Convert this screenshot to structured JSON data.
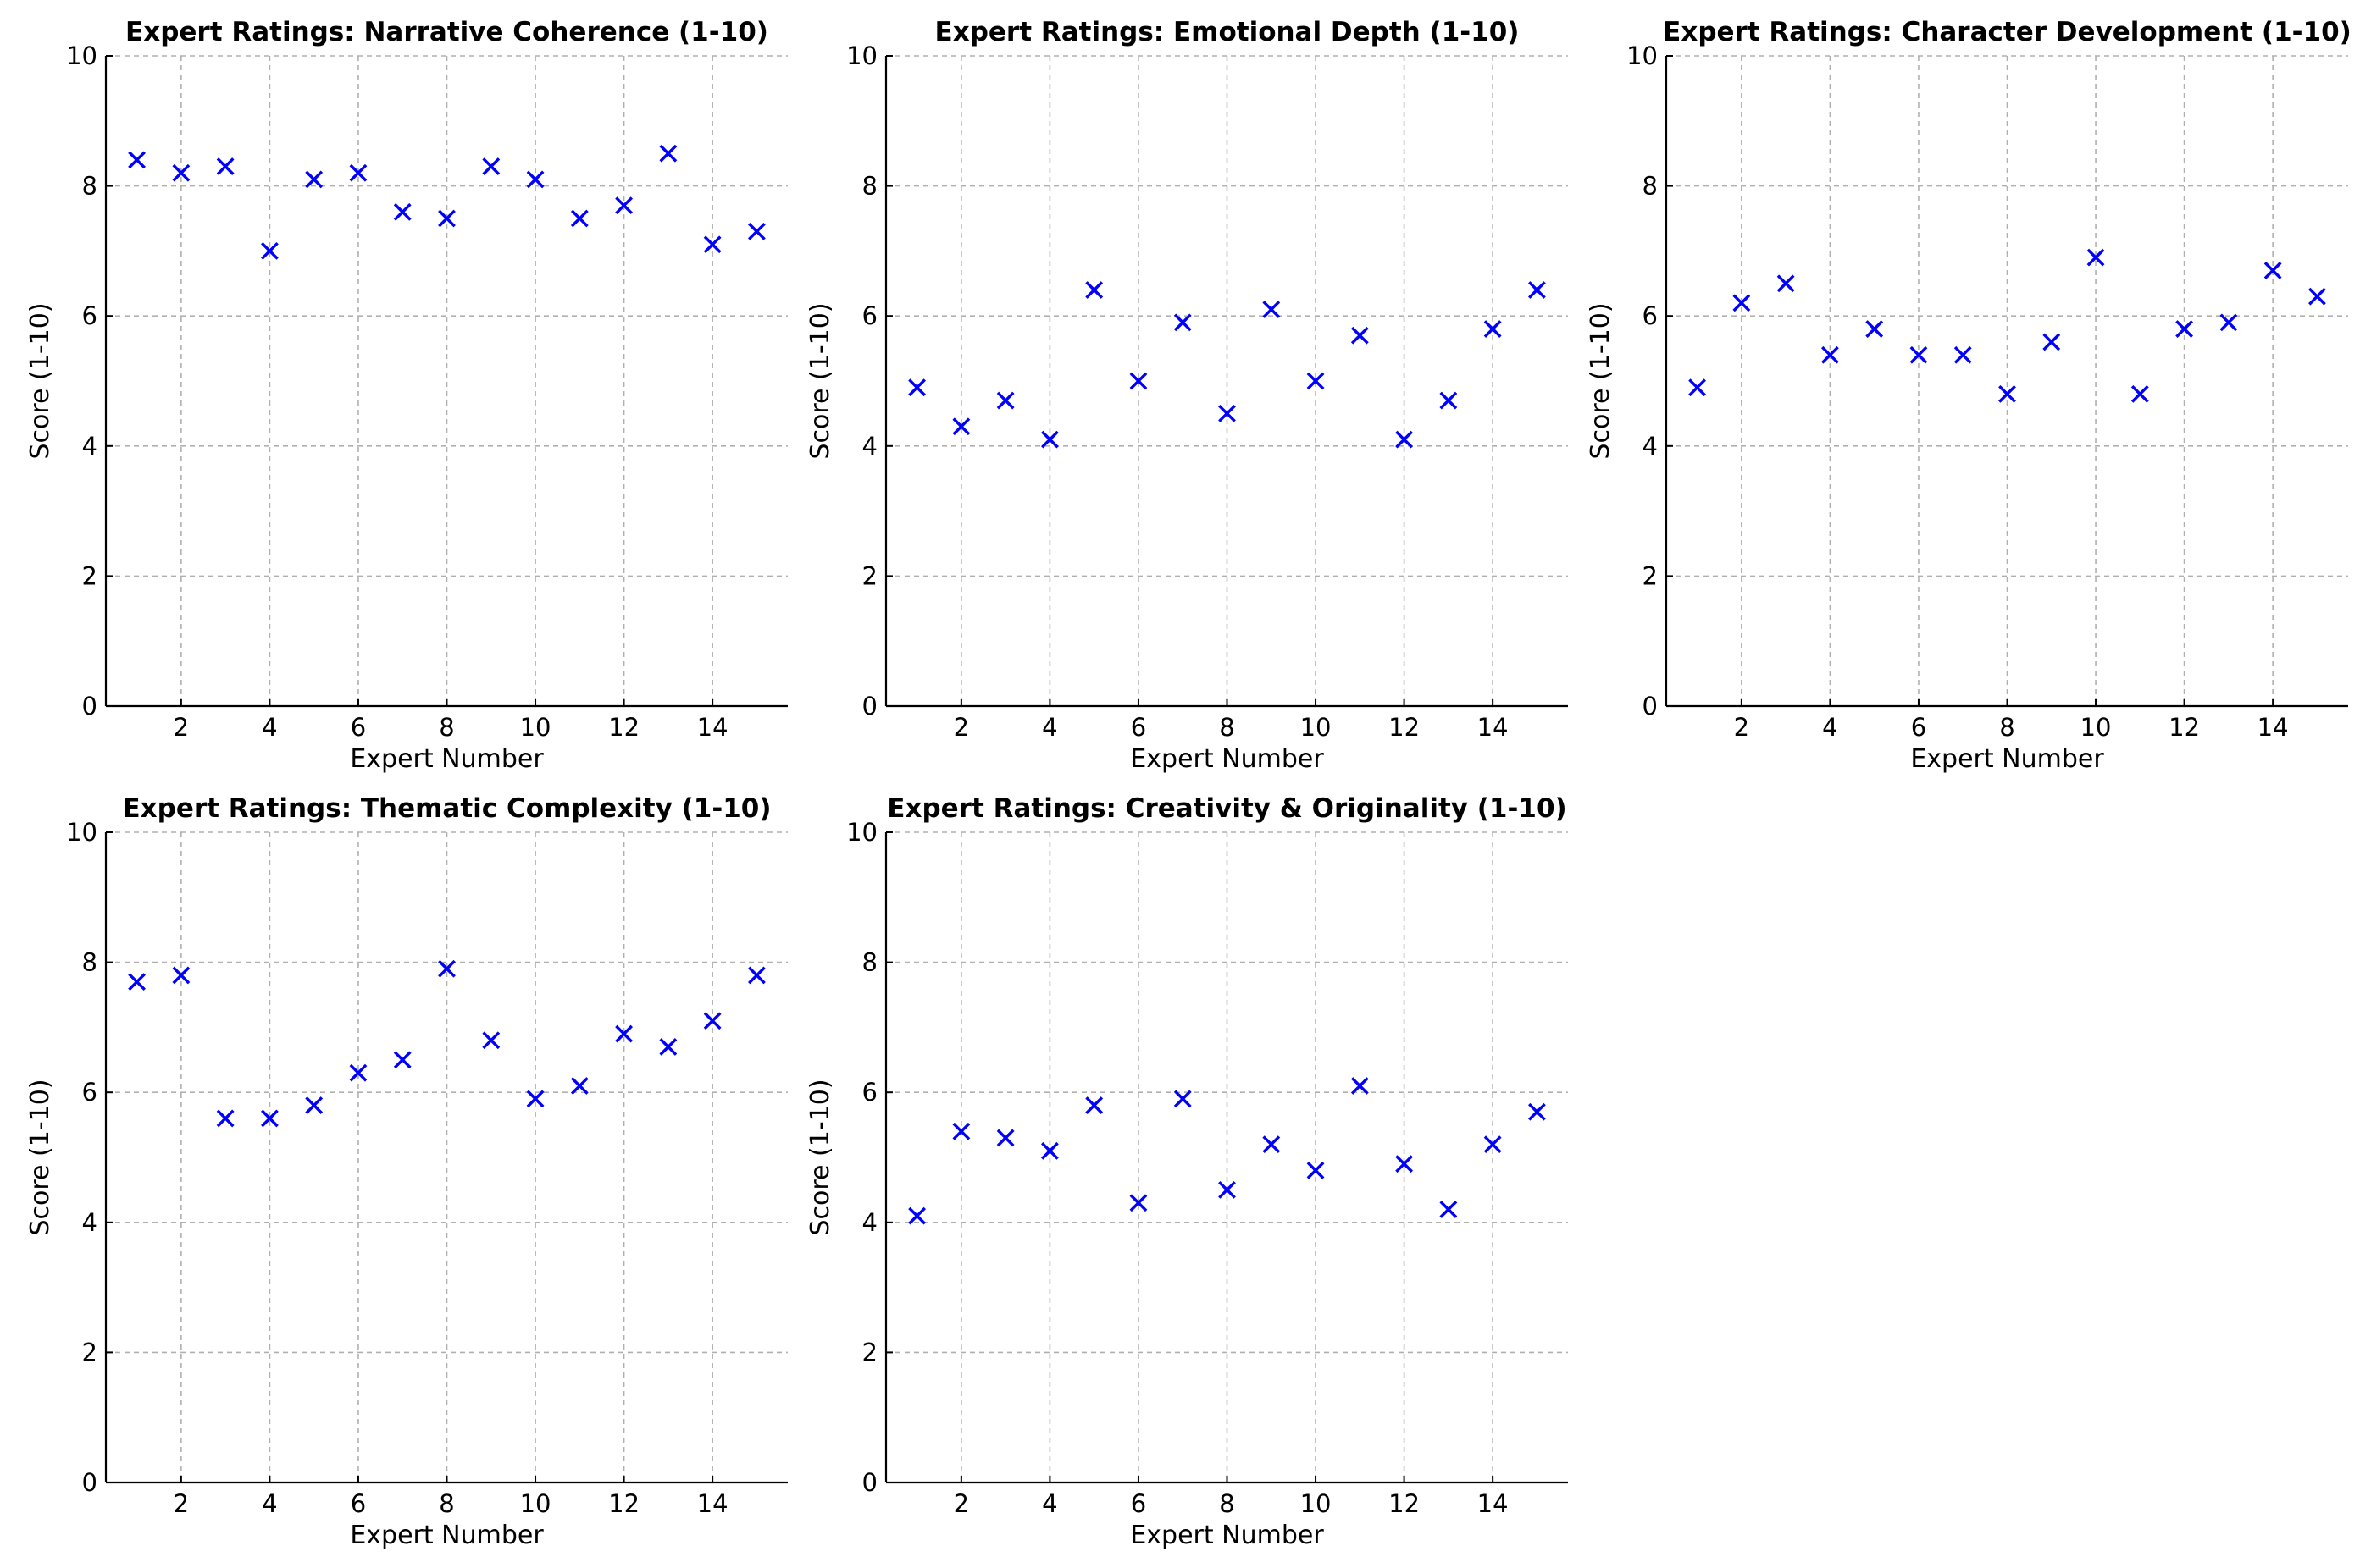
{
  "chart_data": [
    {
      "type": "scatter",
      "title": "Expert Ratings: Narrative Coherence (1-10)",
      "xlabel": "Expert Number",
      "ylabel": "Score (1-10)",
      "x": [
        1,
        2,
        3,
        4,
        5,
        6,
        7,
        8,
        9,
        10,
        11,
        12,
        13,
        14,
        15
      ],
      "y": [
        8.4,
        8.2,
        8.3,
        7.0,
        8.1,
        8.2,
        7.6,
        7.5,
        8.3,
        8.1,
        7.5,
        7.7,
        8.5,
        7.1,
        7.3
      ],
      "xlim": [
        0.3,
        15.7
      ],
      "ylim": [
        0,
        10
      ],
      "xticks": [
        2,
        4,
        6,
        8,
        10,
        12,
        14
      ],
      "yticks": [
        0,
        2,
        4,
        6,
        8,
        10
      ],
      "marker": "x",
      "color": "#0000ff",
      "grid": true
    },
    {
      "type": "scatter",
      "title": "Expert Ratings: Emotional Depth (1-10)",
      "xlabel": "Expert Number",
      "ylabel": "Score (1-10)",
      "x": [
        1,
        2,
        3,
        4,
        5,
        6,
        7,
        8,
        9,
        10,
        11,
        12,
        13,
        14,
        15
      ],
      "y": [
        4.9,
        4.3,
        4.7,
        4.1,
        6.4,
        5.0,
        5.9,
        4.5,
        6.1,
        5.0,
        5.7,
        4.1,
        4.7,
        5.8,
        6.4
      ],
      "xlim": [
        0.3,
        15.7
      ],
      "ylim": [
        0,
        10
      ],
      "xticks": [
        2,
        4,
        6,
        8,
        10,
        12,
        14
      ],
      "yticks": [
        0,
        2,
        4,
        6,
        8,
        10
      ],
      "marker": "x",
      "color": "#0000ff",
      "grid": true
    },
    {
      "type": "scatter",
      "title": "Expert Ratings: Character Development (1-10)",
      "xlabel": "Expert Number",
      "ylabel": "Score (1-10)",
      "x": [
        1,
        2,
        3,
        4,
        5,
        6,
        7,
        8,
        9,
        10,
        11,
        12,
        13,
        14,
        15
      ],
      "y": [
        4.9,
        6.2,
        6.5,
        5.4,
        5.8,
        5.4,
        5.4,
        4.8,
        5.6,
        6.9,
        4.8,
        5.8,
        5.9,
        6.7,
        6.3
      ],
      "xlim": [
        0.3,
        15.7
      ],
      "ylim": [
        0,
        10
      ],
      "xticks": [
        2,
        4,
        6,
        8,
        10,
        12,
        14
      ],
      "yticks": [
        0,
        2,
        4,
        6,
        8,
        10
      ],
      "marker": "x",
      "color": "#0000ff",
      "grid": true
    },
    {
      "type": "scatter",
      "title": "Expert Ratings: Thematic Complexity (1-10)",
      "xlabel": "Expert Number",
      "ylabel": "Score (1-10)",
      "x": [
        1,
        2,
        3,
        4,
        5,
        6,
        7,
        8,
        9,
        10,
        11,
        12,
        13,
        14,
        15
      ],
      "y": [
        7.7,
        7.8,
        5.6,
        5.6,
        5.8,
        6.3,
        6.5,
        7.9,
        6.8,
        5.9,
        6.1,
        6.9,
        6.7,
        7.1,
        7.8
      ],
      "xlim": [
        0.3,
        15.7
      ],
      "ylim": [
        0,
        10
      ],
      "xticks": [
        2,
        4,
        6,
        8,
        10,
        12,
        14
      ],
      "yticks": [
        0,
        2,
        4,
        6,
        8,
        10
      ],
      "marker": "x",
      "color": "#0000ff",
      "grid": true
    },
    {
      "type": "scatter",
      "title": "Expert Ratings: Creativity & Originality (1-10)",
      "xlabel": "Expert Number",
      "ylabel": "Score (1-10)",
      "x": [
        1,
        2,
        3,
        4,
        5,
        6,
        7,
        8,
        9,
        10,
        11,
        12,
        13,
        14,
        15
      ],
      "y": [
        4.1,
        5.4,
        5.3,
        5.1,
        5.8,
        4.3,
        5.9,
        4.5,
        5.2,
        4.8,
        6.1,
        4.9,
        4.2,
        5.2,
        5.7
      ],
      "xlim": [
        0.3,
        15.7
      ],
      "ylim": [
        0,
        10
      ],
      "xticks": [
        2,
        4,
        6,
        8,
        10,
        12,
        14
      ],
      "yticks": [
        0,
        2,
        4,
        6,
        8,
        10
      ],
      "marker": "x",
      "color": "#0000ff",
      "grid": true
    }
  ]
}
